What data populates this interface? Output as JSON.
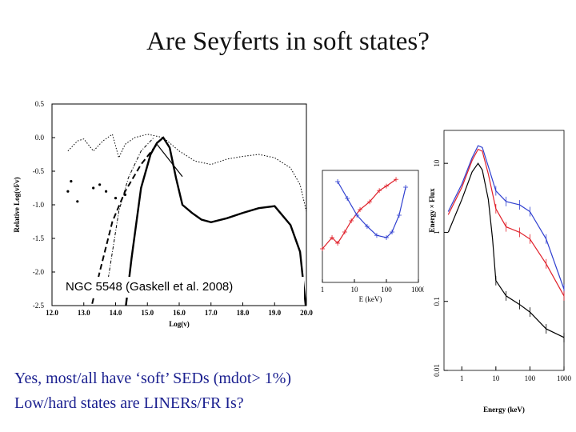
{
  "slide": {
    "title": "Are Seyferts in soft states?",
    "caption": "NGC 5548 (Gaskell et al. 2008)",
    "bullets": [
      "Yes, most/all have ‘soft’ SEDs (mdot> 1%)",
      "Low/hard states are LINERs/FR Is?"
    ]
  },
  "chart_data": [
    {
      "type": "line",
      "title": "",
      "xlabel": "Log(v)",
      "ylabel": "Relative Log(vFv)",
      "xlim": [
        12.0,
        20.0
      ],
      "ylim": [
        -2.5,
        0.5
      ],
      "xticks": [
        "12.0",
        "13.0",
        "14.0",
        "15.0",
        "16.0",
        "17.0",
        "18.0",
        "19.0",
        "20.0"
      ],
      "yticks": [
        "0.5",
        "0.0",
        "-0.5",
        "-1.0",
        "-1.5",
        "-2.0",
        "-2.5"
      ],
      "series": [
        {
          "style": "thick-solid",
          "points": [
            [
              14.3,
              -2.6
            ],
            [
              14.5,
              -1.8
            ],
            [
              14.8,
              -0.75
            ],
            [
              15.1,
              -0.25
            ],
            [
              15.3,
              -0.08
            ],
            [
              15.5,
              0.0
            ],
            [
              15.7,
              -0.15
            ],
            [
              15.9,
              -0.6
            ],
            [
              16.1,
              -1.0
            ],
            [
              16.4,
              -1.12
            ],
            [
              16.7,
              -1.22
            ],
            [
              17.0,
              -1.26
            ],
            [
              17.5,
              -1.2
            ],
            [
              18.0,
              -1.12
            ],
            [
              18.5,
              -1.05
            ],
            [
              19.0,
              -1.02
            ],
            [
              19.5,
              -1.3
            ],
            [
              19.8,
              -1.7
            ],
            [
              20.0,
              -2.6
            ]
          ]
        },
        {
          "style": "solid-connector",
          "points": [
            [
              15.3,
              -0.1
            ],
            [
              16.1,
              -0.58
            ]
          ]
        },
        {
          "style": "dotted",
          "points": [
            [
              12.5,
              -0.2
            ],
            [
              12.8,
              -0.05
            ],
            [
              13.0,
              -0.02
            ],
            [
              13.3,
              -0.2
            ],
            [
              13.6,
              -0.05
            ],
            [
              13.9,
              0.05
            ],
            [
              14.1,
              -0.3
            ],
            [
              14.3,
              -0.1
            ],
            [
              14.6,
              0.0
            ],
            [
              15.0,
              0.05
            ],
            [
              15.5,
              0.0
            ],
            [
              16.0,
              -0.2
            ],
            [
              16.5,
              -0.35
            ],
            [
              17.0,
              -0.4
            ],
            [
              17.5,
              -0.32
            ],
            [
              18.0,
              -0.28
            ],
            [
              18.5,
              -0.25
            ],
            [
              19.0,
              -0.3
            ],
            [
              19.5,
              -0.45
            ],
            [
              19.8,
              -0.7
            ],
            [
              20.0,
              -1.1
            ]
          ]
        },
        {
          "style": "dot-dash",
          "points": [
            [
              13.7,
              -2.3
            ],
            [
              13.9,
              -1.7
            ],
            [
              14.1,
              -1.1
            ],
            [
              14.4,
              -0.6
            ],
            [
              14.8,
              -0.2
            ],
            [
              15.2,
              0.0
            ]
          ]
        },
        {
          "style": "dashed",
          "points": [
            [
              13.2,
              -2.6
            ],
            [
              13.5,
              -2.0
            ],
            [
              13.9,
              -1.25
            ],
            [
              14.3,
              -0.8
            ],
            [
              14.8,
              -0.4
            ],
            [
              15.3,
              -0.1
            ]
          ]
        },
        {
          "style": "scatter",
          "points": [
            [
              12.5,
              -0.8
            ],
            [
              12.6,
              -0.65
            ],
            [
              12.8,
              -0.95
            ],
            [
              13.3,
              -0.75
            ],
            [
              13.5,
              -0.7
            ],
            [
              13.7,
              -0.8
            ],
            [
              14.0,
              -0.9
            ],
            [
              14.3,
              -0.85
            ]
          ]
        }
      ]
    },
    {
      "type": "line",
      "title": "",
      "xlabel": "E (keV)",
      "ylabel": "",
      "xlim": [
        1,
        1000
      ],
      "xticks": [
        "1",
        "10",
        "100",
        "1000"
      ],
      "colors": {
        "red": "#e0202a",
        "blue": "#3040d0"
      },
      "series": [
        {
          "color": "red",
          "points": [
            [
              1,
              0.3
            ],
            [
              2,
              0.4
            ],
            [
              3,
              0.35
            ],
            [
              5,
              0.45
            ],
            [
              8,
              0.55
            ],
            [
              15,
              0.65
            ],
            [
              30,
              0.72
            ],
            [
              60,
              0.82
            ],
            [
              100,
              0.86
            ],
            [
              200,
              0.92
            ]
          ]
        },
        {
          "color": "blue",
          "points": [
            [
              3,
              0.9
            ],
            [
              6,
              0.75
            ],
            [
              12,
              0.6
            ],
            [
              25,
              0.5
            ],
            [
              50,
              0.42
            ],
            [
              100,
              0.4
            ],
            [
              150,
              0.45
            ],
            [
              250,
              0.6
            ],
            [
              400,
              0.85
            ]
          ]
        }
      ]
    },
    {
      "type": "line",
      "title": "",
      "xlabel": "Energy (keV)",
      "ylabel": "Energy × Flux",
      "xticks": [
        "1",
        "10",
        "100",
        "1000"
      ],
      "yticks": [
        "10",
        "1",
        "0.1",
        "0.01"
      ],
      "colors": {
        "red": "#e0202a",
        "blue": "#3040d0",
        "black": "#000000"
      },
      "series": [
        {
          "color": "blue",
          "points": [
            [
              0.4,
              2.0
            ],
            [
              1,
              5
            ],
            [
              2,
              12
            ],
            [
              3,
              18
            ],
            [
              4,
              17
            ],
            [
              6,
              9
            ],
            [
              10,
              4
            ],
            [
              20,
              2.8
            ],
            [
              50,
              2.5
            ],
            [
              100,
              2.0
            ],
            [
              300,
              0.8
            ],
            [
              1000,
              0.15
            ]
          ]
        },
        {
          "color": "red",
          "points": [
            [
              0.4,
              1.8
            ],
            [
              1,
              4.5
            ],
            [
              2,
              11
            ],
            [
              3,
              16
            ],
            [
              4,
              15
            ],
            [
              6,
              7
            ],
            [
              10,
              2.2
            ],
            [
              20,
              1.2
            ],
            [
              50,
              1.0
            ],
            [
              100,
              0.8
            ],
            [
              300,
              0.35
            ],
            [
              1000,
              0.12
            ]
          ]
        },
        {
          "color": "black",
          "points": [
            [
              0.4,
              1.0
            ],
            [
              1,
              3
            ],
            [
              2,
              7.5
            ],
            [
              3,
              10
            ],
            [
              4,
              8
            ],
            [
              6,
              3
            ],
            [
              8,
              0.8
            ],
            [
              10,
              0.2
            ],
            [
              20,
              0.12
            ],
            [
              50,
              0.09
            ],
            [
              100,
              0.07
            ],
            [
              300,
              0.04
            ],
            [
              1000,
              0.03
            ]
          ]
        }
      ]
    }
  ]
}
